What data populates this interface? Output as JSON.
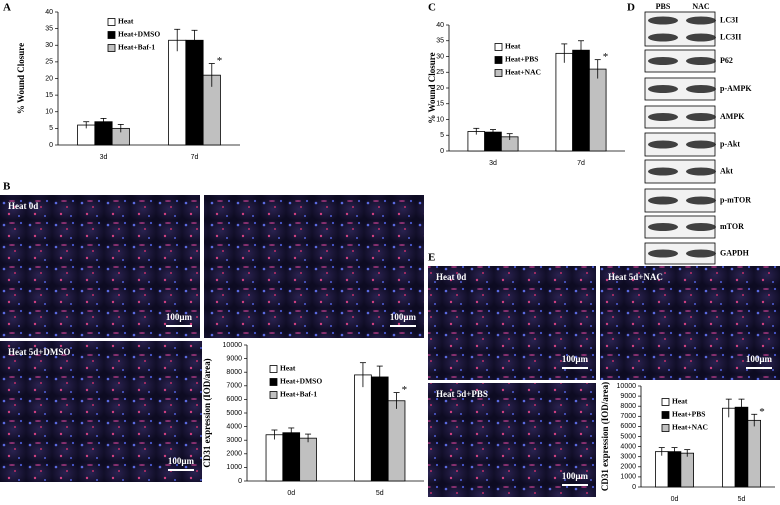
{
  "chart_data": [
    {
      "type": "bar",
      "ylabel": "% Wound Closure",
      "categories": [
        "3d",
        "7d"
      ],
      "series": [
        {
          "name": "Heat",
          "color": "#ffffff",
          "values": [
            6,
            31.5
          ],
          "errors": [
            1,
            3.3
          ]
        },
        {
          "name": "Heat+DMSO",
          "color": "#000000",
          "values": [
            7,
            31.5
          ],
          "errors": [
            1,
            3
          ]
        },
        {
          "name": "Heat+Baf-1",
          "color": "#c0c0c0",
          "values": [
            5,
            21
          ],
          "errors": [
            1.2,
            3.5
          ]
        }
      ],
      "ylim": [
        0,
        40
      ],
      "yticks": [
        0,
        5,
        10,
        15,
        20,
        25,
        30,
        35,
        40
      ],
      "annotation": "*"
    },
    {
      "type": "bar",
      "ylabel": "% Wound Closure",
      "categories": [
        "3d",
        "7d"
      ],
      "series": [
        {
          "name": "Heat",
          "color": "#ffffff",
          "values": [
            6.2,
            31
          ],
          "errors": [
            1,
            3
          ]
        },
        {
          "name": "Heat+PBS",
          "color": "#000000",
          "values": [
            6,
            32
          ],
          "errors": [
            0.8,
            3
          ]
        },
        {
          "name": "Heat+NAC",
          "color": "#c0c0c0",
          "values": [
            4.5,
            26
          ],
          "errors": [
            1,
            3
          ]
        }
      ],
      "ylim": [
        0,
        40
      ],
      "yticks": [
        0,
        5,
        10,
        15,
        20,
        25,
        30,
        35,
        40
      ],
      "annotation": "*"
    },
    {
      "type": "bar",
      "ylabel": "CD31 expression (IOD/area)",
      "categories": [
        "0d",
        "5d"
      ],
      "series": [
        {
          "name": "Heat",
          "color": "#ffffff",
          "values": [
            3400,
            7800
          ],
          "errors": [
            350,
            900
          ]
        },
        {
          "name": "Heat+DMSO",
          "color": "#000000",
          "values": [
            3550,
            7650
          ],
          "errors": [
            350,
            800
          ]
        },
        {
          "name": "Heat+Baf-1",
          "color": "#c0c0c0",
          "values": [
            3150,
            5900
          ],
          "errors": [
            300,
            600
          ]
        }
      ],
      "ylim": [
        0,
        10000
      ],
      "yticks": [
        0,
        1000,
        2000,
        3000,
        4000,
        5000,
        6000,
        7000,
        8000,
        9000,
        10000
      ],
      "annotation": "*"
    },
    {
      "type": "bar",
      "ylabel": "CD31 expression (IOD/area)",
      "categories": [
        "0d",
        "5d"
      ],
      "series": [
        {
          "name": "Heat",
          "color": "#ffffff",
          "values": [
            3500,
            7800
          ],
          "errors": [
            400,
            900
          ]
        },
        {
          "name": "Heat+PBS",
          "color": "#000000",
          "values": [
            3500,
            7900
          ],
          "errors": [
            400,
            800
          ]
        },
        {
          "name": "Heat+NAC",
          "color": "#c0c0c0",
          "values": [
            3350,
            6600
          ],
          "errors": [
            350,
            600
          ]
        }
      ],
      "ylim": [
        0,
        10000
      ],
      "yticks": [
        0,
        1000,
        2000,
        3000,
        4000,
        5000,
        6000,
        7000,
        8000,
        9000,
        10000
      ],
      "annotation": "*"
    }
  ],
  "panel_labels": [
    "A",
    "B",
    "C",
    "D",
    "E"
  ],
  "micrographs": [
    {
      "label": "Heat 0d",
      "scale": "100μm"
    },
    {
      "scale": "100μm"
    },
    {
      "label": "Heat 5d+DMSO",
      "scale": "100μm"
    },
    {
      "label": "Heat 0d",
      "scale": "100μm"
    },
    {
      "label": "Heat 5d+NAC",
      "scale": "100μm"
    },
    {
      "label": "Heat 5d+PBS",
      "scale": "100μm"
    }
  ],
  "blot": {
    "lanes": [
      "PBS",
      "NAC"
    ],
    "rows": [
      [
        "LC3I",
        "LC3II"
      ],
      [
        "P62"
      ],
      [
        "p-AMPK"
      ],
      [
        "AMPK"
      ],
      [
        "p-Akt"
      ],
      [
        "Akt"
      ],
      [
        "p-mTOR"
      ],
      [
        "mTOR"
      ],
      [
        "GAPDH"
      ]
    ]
  }
}
